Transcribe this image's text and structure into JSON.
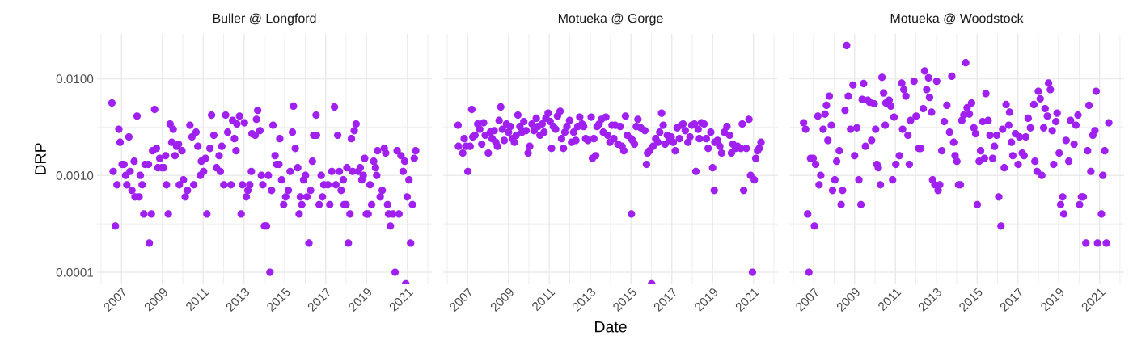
{
  "chart_data": [
    {
      "type": "scatter",
      "title": "Buller @ Longford",
      "ylabel": "DRP",
      "color": "#a020f0",
      "marker": "circle",
      "grid": true,
      "log": true,
      "xlim": [
        2005.8,
        2022.2
      ],
      "xticks": [
        2007,
        2009,
        2011,
        2013,
        2015,
        2017,
        2019,
        2021
      ],
      "ylim": [
        7.5e-05,
        0.029
      ],
      "yticks": [
        {
          "value": 0.0001,
          "label": "0.0001"
        },
        {
          "value": 0.001,
          "label": "0.0010"
        },
        {
          "value": 0.01,
          "label": "0.0100"
        }
      ],
      "x": [
        2006.53,
        2006.59,
        2006.7,
        2006.78,
        2006.87,
        2006.93,
        2007.03,
        2007.12,
        2007.2,
        2007.26,
        2007.36,
        2007.42,
        2007.51,
        2007.62,
        2007.66,
        2007.76,
        2007.86,
        2007.92,
        2008.01,
        2008.09,
        2008.15,
        2008.32,
        2008.36,
        2008.46,
        2008.52,
        2008.62,
        2008.71,
        2008.78,
        2008.87,
        2008.98,
        2009.07,
        2009.16,
        2009.2,
        2009.29,
        2009.38,
        2009.53,
        2009.46,
        2009.62,
        2009.7,
        2009.79,
        2009.83,
        2009.96,
        2010.03,
        2010.12,
        2010.23,
        2010.35,
        2010.45,
        2010.54,
        2010.65,
        2010.74,
        2010.86,
        2010.91,
        2011.02,
        2011.11,
        2011.18,
        2011.33,
        2011.41,
        2011.52,
        2011.65,
        2011.78,
        2011.84,
        2011.91,
        2012.01,
        2012.1,
        2012.2,
        2012.36,
        2012.44,
        2012.53,
        2012.61,
        2012.65,
        2012.78,
        2012.86,
        2012.92,
        2013.02,
        2013.11,
        2013.19,
        2013.28,
        2013.36,
        2013.39,
        2013.55,
        2013.61,
        2013.67,
        2013.78,
        2013.85,
        2013.92,
        2014.0,
        2014.1,
        2014.19,
        2014.27,
        2014.35,
        2014.42,
        2014.52,
        2014.6,
        2014.71,
        2014.75,
        2014.84,
        2014.94,
        2015.04,
        2015.17,
        2015.26,
        2015.37,
        2015.42,
        2015.51,
        2015.63,
        2015.7,
        2015.76,
        2015.83,
        2015.92,
        2016.01,
        2016.08,
        2016.18,
        2016.26,
        2016.35,
        2016.41,
        2016.55,
        2016.53,
        2016.68,
        2016.78,
        2016.84,
        2016.91,
        2017.11,
        2017.2,
        2017.3,
        2017.43,
        2017.5,
        2017.59,
        2017.67,
        2017.76,
        2017.86,
        2017.9,
        2018.0,
        2018.04,
        2018.11,
        2018.19,
        2018.26,
        2018.32,
        2018.4,
        2018.49,
        2018.59,
        2018.69,
        2018.77,
        2018.84,
        2018.91,
        2018.99,
        2019.08,
        2019.17,
        2019.25,
        2019.35,
        2019.44,
        2019.5,
        2019.54,
        2019.67,
        2019.77,
        2019.87,
        2019.94,
        2020.03,
        2020.08,
        2020.17,
        2020.3,
        2020.4,
        2020.5,
        2020.59,
        2020.69,
        2020.79,
        2020.87,
        2020.92,
        2020.99,
        2021.08,
        2021.16,
        2021.25,
        2021.34,
        2021.41
      ],
      "values": [
        0.0056,
        0.0011,
        0.0003,
        0.0008,
        0.003,
        0.0022,
        0.0013,
        0.0013,
        0.001,
        0.0008,
        0.0025,
        0.0011,
        0.0007,
        0.0014,
        0.0006,
        0.0041,
        0.0006,
        0.001,
        0.0008,
        0.0004,
        0.0013,
        0.0013,
        0.0002,
        0.0004,
        0.0018,
        0.0048,
        0.0019,
        0.0012,
        0.0015,
        0.0012,
        0.0012,
        0.0016,
        0.0008,
        0.0004,
        0.0034,
        0.003,
        0.0022,
        0.0016,
        0.002,
        0.0021,
        0.0008,
        0.0018,
        0.0009,
        0.0006,
        0.0007,
        0.0033,
        0.0025,
        0.0008,
        0.0028,
        0.002,
        0.001,
        0.0014,
        0.0011,
        0.0015,
        0.0004,
        0.0019,
        0.0042,
        0.0026,
        0.0012,
        0.0016,
        0.0011,
        0.002,
        0.0008,
        0.0042,
        0.0028,
        0.0008,
        0.0037,
        0.0024,
        0.0018,
        0.0034,
        0.0041,
        0.0004,
        0.0008,
        0.0035,
        0.0006,
        0.0007,
        0.0008,
        0.0011,
        0.0027,
        0.0026,
        0.0038,
        0.0047,
        0.0029,
        0.001,
        0.0008,
        0.0003,
        0.0003,
        0.001,
        0.0001,
        0.0007,
        0.0033,
        0.0016,
        0.0013,
        0.0013,
        0.0024,
        0.0009,
        0.0005,
        0.0006,
        0.0007,
        0.0011,
        0.0028,
        0.0052,
        0.0019,
        0.0012,
        0.0004,
        0.0006,
        0.0005,
        0.0009,
        0.001,
        0.0006,
        0.0002,
        0.0007,
        0.0014,
        0.0026,
        0.0026,
        0.0042,
        0.0005,
        0.001,
        0.0006,
        0.0008,
        0.0008,
        0.0005,
        0.0011,
        0.0051,
        0.0008,
        0.0026,
        0.0011,
        0.0007,
        0.0009,
        0.0005,
        0.0005,
        0.0012,
        0.0002,
        0.0004,
        0.0024,
        0.0011,
        0.0029,
        0.0034,
        0.0011,
        0.0012,
        0.0009,
        0.001,
        0.0015,
        0.0004,
        0.0004,
        0.0008,
        0.0005,
        0.0014,
        0.0012,
        0.001,
        0.0018,
        0.0006,
        0.0007,
        0.0019,
        0.0017,
        0.0005,
        0.0004,
        0.0003,
        0.0004,
        0.0001,
        0.0018,
        0.0004,
        0.0016,
        0.0011,
        0.0014,
        7.6e-05,
        0.0006,
        0.0009,
        0.0002,
        0.0005,
        0.0015,
        0.0018
      ]
    },
    {
      "type": "scatter",
      "title": "Motueka @ Gorge",
      "xlabel": "Date",
      "color": "#a020f0",
      "marker": "circle",
      "grid": true,
      "log": true,
      "tick_labels": "x",
      "xlim": [
        2005.8,
        2022.2
      ],
      "xticks": [
        2007,
        2009,
        2011,
        2013,
        2015,
        2017,
        2019,
        2021
      ],
      "ylim": [
        7.5e-05,
        0.029
      ],
      "yticks": [
        {
          "value": 0.0001,
          "label": null
        },
        {
          "value": 0.001,
          "label": null
        },
        {
          "value": 0.01,
          "label": null
        }
      ],
      "x": [
        2006.53,
        2006.55,
        2006.76,
        2006.83,
        2006.92,
        2007.01,
        2007.12,
        2007.2,
        2007.25,
        2007.36,
        2007.49,
        2007.59,
        2007.69,
        2007.78,
        2007.86,
        2008.01,
        2008.11,
        2008.2,
        2008.3,
        2008.38,
        2008.46,
        2008.54,
        2008.62,
        2008.7,
        2008.79,
        2008.9,
        2009.0,
        2009.09,
        2009.19,
        2009.29,
        2009.38,
        2009.46,
        2009.56,
        2009.66,
        2009.75,
        2009.86,
        2009.96,
        2010.04,
        2010.15,
        2010.25,
        2010.36,
        2010.44,
        2010.54,
        2010.65,
        2010.74,
        2010.83,
        2010.94,
        2011.04,
        2011.11,
        2011.2,
        2011.31,
        2011.4,
        2011.53,
        2011.6,
        2011.69,
        2011.76,
        2011.86,
        2011.99,
        2012.09,
        2012.19,
        2012.3,
        2012.39,
        2012.49,
        2012.6,
        2012.68,
        2012.78,
        2012.89,
        2013.05,
        2013.11,
        2013.18,
        2013.27,
        2013.34,
        2013.44,
        2013.55,
        2013.64,
        2013.77,
        2013.86,
        2013.97,
        2014.07,
        2014.16,
        2014.23,
        2014.36,
        2014.47,
        2014.56,
        2014.65,
        2014.73,
        2014.82,
        2015.0,
        2015.02,
        2015.08,
        2015.17,
        2015.26,
        2015.34,
        2015.48,
        2015.68,
        2015.76,
        2015.81,
        2015.91,
        2016.01,
        2016.08,
        2016.21,
        2016.32,
        2016.41,
        2016.5,
        2016.58,
        2016.67,
        2016.78,
        2016.87,
        2016.97,
        2017.07,
        2017.17,
        2017.26,
        2017.37,
        2017.46,
        2017.55,
        2017.66,
        2017.79,
        2017.89,
        2017.98,
        2018.11,
        2018.18,
        2018.29,
        2018.35,
        2018.45,
        2018.58,
        2018.69,
        2018.78,
        2018.91,
        2019.0,
        2019.08,
        2019.11,
        2019.24,
        2019.35,
        2019.44,
        2019.57,
        2019.7,
        2019.83,
        2019.92,
        2019.99,
        2020.12,
        2020.22,
        2020.38,
        2020.45,
        2020.52,
        2020.65,
        2020.78,
        2020.86,
        2020.95,
        2021.04,
        2021.11,
        2021.2,
        2021.28,
        2021.37
      ],
      "values": [
        0.0033,
        0.002,
        0.0017,
        0.0024,
        0.002,
        0.0011,
        0.002,
        0.0048,
        0.0025,
        0.0026,
        0.0034,
        0.003,
        0.0021,
        0.0035,
        0.0026,
        0.0017,
        0.0028,
        0.0024,
        0.0029,
        0.0022,
        0.002,
        0.0037,
        0.0051,
        0.003,
        0.0023,
        0.0034,
        0.0028,
        0.0032,
        0.0024,
        0.0022,
        0.0026,
        0.0042,
        0.0032,
        0.0028,
        0.0036,
        0.0029,
        0.0017,
        0.002,
        0.0034,
        0.0029,
        0.0039,
        0.0032,
        0.0026,
        0.0034,
        0.0028,
        0.0039,
        0.0044,
        0.0036,
        0.0019,
        0.0032,
        0.003,
        0.0041,
        0.0046,
        0.0024,
        0.0019,
        0.0028,
        0.0032,
        0.0037,
        0.0022,
        0.0028,
        0.0023,
        0.0032,
        0.004,
        0.0034,
        0.0032,
        0.0024,
        0.0023,
        0.004,
        0.0015,
        0.0024,
        0.0016,
        0.0032,
        0.0034,
        0.0038,
        0.0028,
        0.004,
        0.0026,
        0.0022,
        0.0033,
        0.0024,
        0.0033,
        0.0021,
        0.0032,
        0.002,
        0.0018,
        0.0041,
        0.0026,
        0.0024,
        0.0004,
        0.0023,
        0.0021,
        0.0032,
        0.0038,
        0.0031,
        0.0029,
        0.0013,
        0.0017,
        0.0018,
        7.6e-05,
        0.002,
        0.0024,
        0.0022,
        0.0028,
        0.0044,
        0.0033,
        0.0021,
        0.0026,
        0.0023,
        0.0025,
        0.0022,
        0.0018,
        0.0031,
        0.0024,
        0.0033,
        0.0034,
        0.0029,
        0.0022,
        0.0025,
        0.0033,
        0.0034,
        0.0011,
        0.003,
        0.0024,
        0.0035,
        0.0034,
        0.0024,
        0.0019,
        0.0028,
        0.0012,
        0.0007,
        0.0022,
        0.0023,
        0.002,
        0.0017,
        0.0028,
        0.0032,
        0.0026,
        0.0017,
        0.0021,
        0.0019,
        0.002,
        0.0019,
        0.0034,
        0.0007,
        0.0019,
        0.0038,
        0.001,
        0.0001,
        0.0009,
        0.0015,
        0.0018,
        0.0019,
        0.0022
      ]
    },
    {
      "type": "scatter",
      "title": "Motueka @ Woodstock",
      "color": "#a020f0",
      "marker": "circle",
      "grid": true,
      "log": true,
      "tick_labels": "x",
      "xlim": [
        2005.8,
        2022.2
      ],
      "xticks": [
        2007,
        2009,
        2011,
        2013,
        2015,
        2017,
        2019,
        2021
      ],
      "ylim": [
        7.5e-05,
        0.029
      ],
      "yticks": [
        {
          "value": 0.0001,
          "label": null
        },
        {
          "value": 0.001,
          "label": null
        },
        {
          "value": 0.01,
          "label": null
        }
      ],
      "x": [
        2006.5,
        2006.6,
        2006.7,
        2006.76,
        2006.84,
        2006.97,
        2007.03,
        2007.09,
        2007.2,
        2007.26,
        2007.34,
        2007.46,
        2007.55,
        2007.62,
        2007.69,
        2007.76,
        2007.86,
        2007.92,
        2008.03,
        2008.12,
        2008.25,
        2008.34,
        2008.41,
        2008.53,
        2008.61,
        2008.69,
        2008.8,
        2008.92,
        2009.0,
        2009.11,
        2009.21,
        2009.31,
        2009.37,
        2009.44,
        2009.53,
        2009.64,
        2009.74,
        2009.83,
        2009.96,
        2010.03,
        2010.09,
        2010.16,
        2010.26,
        2010.34,
        2010.42,
        2010.5,
        2010.53,
        2010.69,
        2010.77,
        2010.86,
        2010.93,
        2011.02,
        2011.19,
        2011.31,
        2011.35,
        2011.41,
        2011.51,
        2011.61,
        2011.68,
        2011.74,
        2011.91,
        2012.01,
        2012.14,
        2012.24,
        2012.36,
        2012.43,
        2012.53,
        2012.62,
        2012.67,
        2012.77,
        2012.82,
        2012.93,
        2013.02,
        2013.09,
        2013.17,
        2013.27,
        2013.39,
        2013.52,
        2013.65,
        2013.76,
        2013.85,
        2013.92,
        2014.01,
        2014.09,
        2014.18,
        2014.25,
        2014.35,
        2014.44,
        2014.51,
        2014.62,
        2014.73,
        2014.84,
        2014.93,
        2015.01,
        2015.1,
        2015.17,
        2015.27,
        2015.36,
        2015.43,
        2015.54,
        2015.63,
        2015.76,
        2015.85,
        2015.96,
        2016.06,
        2016.17,
        2016.25,
        2016.33,
        2016.42,
        2016.55,
        2016.59,
        2016.68,
        2016.75,
        2016.88,
        2017.01,
        2017.08,
        2017.21,
        2017.3,
        2017.38,
        2017.5,
        2017.61,
        2017.78,
        2017.83,
        2017.94,
        2018.0,
        2018.09,
        2018.17,
        2018.26,
        2018.33,
        2018.44,
        2018.5,
        2018.59,
        2018.68,
        2018.75,
        2018.86,
        2018.92,
        2019.02,
        2019.09,
        2019.19,
        2019.25,
        2019.36,
        2019.49,
        2019.58,
        2019.75,
        2019.84,
        2019.94,
        2020.02,
        2020.11,
        2020.2,
        2020.33,
        2020.41,
        2020.48,
        2020.57,
        2020.67,
        2020.77,
        2020.83,
        2020.9,
        2021.09,
        2021.16,
        2021.25,
        2021.33,
        2021.45
      ],
      "values": [
        0.0035,
        0.003,
        0.0004,
        0.0001,
        0.0015,
        0.0015,
        0.0003,
        0.0013,
        0.0041,
        0.0008,
        0.001,
        0.003,
        0.0043,
        0.0053,
        0.0023,
        0.0066,
        0.0033,
        0.0007,
        0.0009,
        0.0014,
        0.0018,
        0.0005,
        0.0007,
        0.0047,
        0.022,
        0.0066,
        0.003,
        0.0086,
        0.0016,
        0.0031,
        0.0009,
        0.0005,
        0.0061,
        0.0089,
        0.002,
        0.006,
        0.0057,
        0.0023,
        0.0055,
        0.003,
        0.0013,
        0.0012,
        0.0008,
        0.0103,
        0.0071,
        0.0033,
        0.0056,
        0.006,
        0.0052,
        0.0009,
        0.004,
        0.0013,
        0.0016,
        0.009,
        0.003,
        0.0077,
        0.0066,
        0.0026,
        0.0013,
        0.0037,
        0.0094,
        0.0041,
        0.0019,
        0.0019,
        0.0049,
        0.012,
        0.0077,
        0.0102,
        0.0064,
        0.0045,
        0.0009,
        0.0008,
        0.0094,
        0.0007,
        0.0008,
        0.0018,
        0.0036,
        0.0053,
        0.0028,
        0.0106,
        0.0022,
        0.0016,
        0.0014,
        0.0008,
        0.0008,
        0.0037,
        0.0042,
        0.0146,
        0.005,
        0.0043,
        0.0056,
        0.0031,
        0.0027,
        0.0005,
        0.0014,
        0.0018,
        0.0036,
        0.0015,
        0.007,
        0.0037,
        0.0026,
        0.0015,
        0.002,
        0.0026,
        0.0006,
        0.0003,
        0.003,
        0.0012,
        0.0054,
        0.0033,
        0.0045,
        0.0022,
        0.0016,
        0.0027,
        0.0013,
        0.0025,
        0.0017,
        0.0016,
        0.0025,
        0.0039,
        0.0031,
        0.0054,
        0.0014,
        0.0011,
        0.0074,
        0.0062,
        0.001,
        0.0031,
        0.0049,
        0.0041,
        0.009,
        0.0077,
        0.0029,
        0.0013,
        0.0036,
        0.0044,
        0.0017,
        0.0005,
        0.0006,
        0.0004,
        0.0023,
        0.0014,
        0.0037,
        0.0021,
        0.0033,
        0.0042,
        0.0005,
        0.0006,
        0.0006,
        0.0002,
        0.0018,
        0.0053,
        0.0011,
        0.0026,
        0.0029,
        0.0074,
        0.0002,
        0.0004,
        0.001,
        0.0018,
        0.0002,
        0.0035
      ]
    }
  ]
}
